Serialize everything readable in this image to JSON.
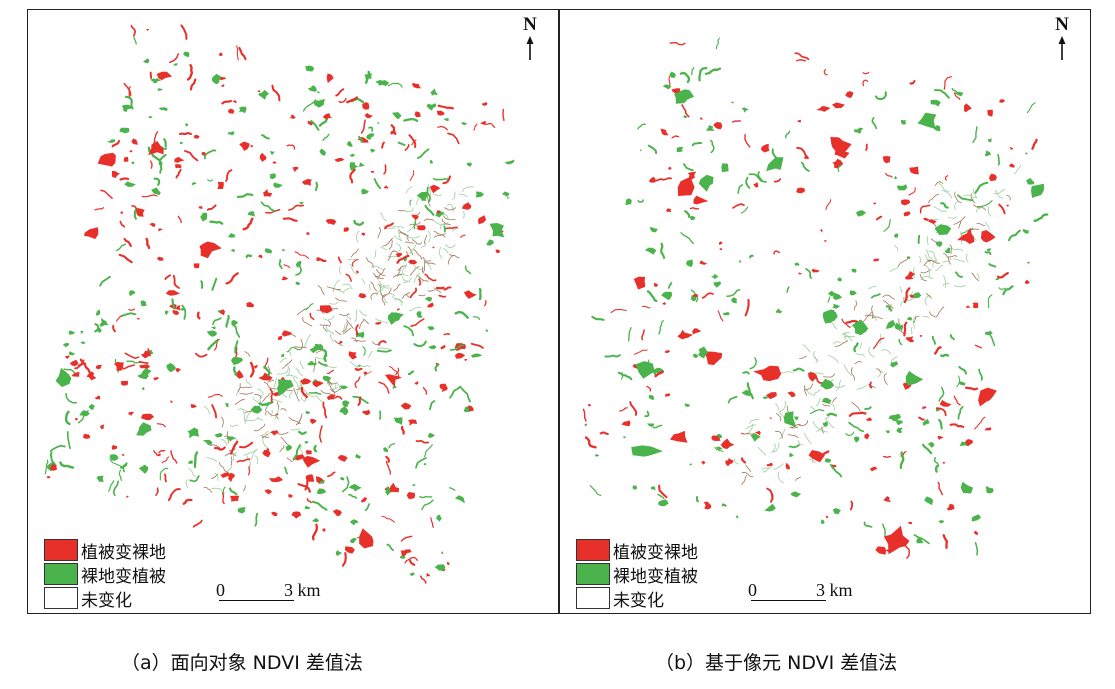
{
  "colors": {
    "veg_to_bare": "#e8302a",
    "bare_to_veg": "#4bb34b",
    "unchanged": "#ffffff",
    "texture": "#a0775a"
  },
  "north_label": "N",
  "legend": [
    {
      "label": "植被变裸地",
      "color": "#e8302a"
    },
    {
      "label": "裸地变植被",
      "color": "#4bb34b"
    },
    {
      "label": "未变化",
      "color": "#ffffff"
    }
  ],
  "scale": {
    "zero": "0",
    "end": "3 km"
  },
  "panels": [
    {
      "id": "a",
      "caption": "（a）面向对象 NDVI 差值法",
      "icon": "change-detection-map"
    },
    {
      "id": "b",
      "caption": "（b）基于像元 NDVI 差值法",
      "icon": "change-detection-map"
    }
  ]
}
